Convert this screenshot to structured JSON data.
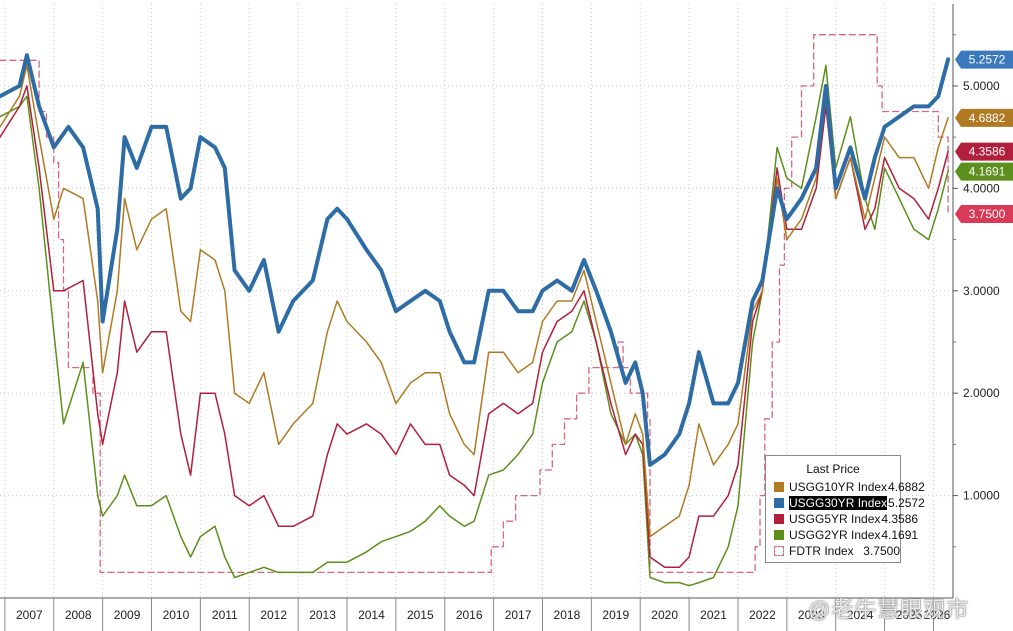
{
  "chart_data": {
    "type": "line",
    "title": "",
    "xlabel": "",
    "ylabel": "",
    "x_range": [
      2006.9,
      2026.4
    ],
    "ylim": [
      0.0,
      5.8
    ],
    "y_ticks": [
      "1.0000",
      "2.0000",
      "3.0000",
      "4.0000",
      "5.0000"
    ],
    "x_ticks": [
      "2007",
      "2008",
      "2009",
      "2010",
      "2011",
      "2012",
      "2013",
      "2014",
      "2015",
      "2016",
      "2017",
      "2018",
      "2019",
      "2020",
      "2021",
      "2022",
      "2023",
      "2024",
      "2025",
      "2026"
    ],
    "grid": true,
    "legend": {
      "title": "Last Price",
      "placement": "bottom-right",
      "entries": [
        {
          "name": "USGG10YR Index",
          "value": "4.6882",
          "color": "#b07a22",
          "highlight": false,
          "style": "solid"
        },
        {
          "name": "USGG30YR Index",
          "value": "5.2572",
          "color": "#2e6ca6",
          "highlight": true,
          "style": "solid"
        },
        {
          "name": "USGG5YR Index",
          "value": "4.3586",
          "color": "#b11f3c",
          "highlight": false,
          "style": "solid"
        },
        {
          "name": "USGG2YR Index",
          "value": "4.1691",
          "color": "#5c8f1b",
          "highlight": false,
          "style": "solid"
        },
        {
          "name": "FDTR Index",
          "value": "3.7500",
          "color": "#d9657e",
          "highlight": false,
          "style": "dashed"
        }
      ]
    },
    "last_value_badges": [
      {
        "label": "5.2572",
        "y": 5.2572,
        "color": "#3b79bf"
      },
      {
        "label": "4.6882",
        "y": 4.6882,
        "color": "#b07a22"
      },
      {
        "label": "4.3586",
        "y": 4.3586,
        "color": "#b11f3c"
      },
      {
        "label": "4.1691",
        "y": 4.1691,
        "color": "#5c8f1b"
      },
      {
        "label": "3.7500",
        "y": 3.75,
        "color": "#d83a57"
      }
    ],
    "series": [
      {
        "name": "USGG30YR Index",
        "color": "#2e6ca6",
        "width": 4,
        "x": [
          2006.9,
          2007.3,
          2007.45,
          2007.7,
          2008.0,
          2008.3,
          2008.6,
          2008.9,
          2009.0,
          2009.3,
          2009.45,
          2009.7,
          2010.0,
          2010.3,
          2010.6,
          2010.8,
          2011.0,
          2011.3,
          2011.5,
          2011.7,
          2012.0,
          2012.3,
          2012.6,
          2012.9,
          2013.3,
          2013.6,
          2013.8,
          2014.0,
          2014.4,
          2014.7,
          2015.0,
          2015.3,
          2015.6,
          2015.9,
          2016.1,
          2016.4,
          2016.6,
          2016.9,
          2017.2,
          2017.5,
          2017.8,
          2018.0,
          2018.3,
          2018.6,
          2018.85,
          2019.1,
          2019.4,
          2019.7,
          2019.9,
          2020.05,
          2020.2,
          2020.5,
          2020.8,
          2021.0,
          2021.2,
          2021.5,
          2021.8,
          2022.0,
          2022.3,
          2022.5,
          2022.8,
          2023.0,
          2023.3,
          2023.6,
          2023.8,
          2024.0,
          2024.3,
          2024.6,
          2024.8,
          2025.0,
          2025.3,
          2025.6,
          2025.9,
          2026.1,
          2026.3
        ],
        "y": [
          4.9,
          5.0,
          5.3,
          4.8,
          4.4,
          4.6,
          4.4,
          3.8,
          2.7,
          3.6,
          4.5,
          4.2,
          4.6,
          4.6,
          3.9,
          4.0,
          4.5,
          4.4,
          4.2,
          3.2,
          3.0,
          3.3,
          2.6,
          2.9,
          3.1,
          3.7,
          3.8,
          3.7,
          3.4,
          3.2,
          2.8,
          2.9,
          3.0,
          2.9,
          2.6,
          2.3,
          2.3,
          3.0,
          3.0,
          2.8,
          2.8,
          3.0,
          3.1,
          3.0,
          3.3,
          3.0,
          2.6,
          2.1,
          2.3,
          2.0,
          1.3,
          1.4,
          1.6,
          1.9,
          2.4,
          1.9,
          1.9,
          2.1,
          2.9,
          3.1,
          4.0,
          3.7,
          3.9,
          4.2,
          5.0,
          4.0,
          4.4,
          3.9,
          4.3,
          4.6,
          4.7,
          4.8,
          4.8,
          4.9,
          5.26
        ]
      },
      {
        "name": "USGG10YR Index",
        "color": "#b07a22",
        "width": 1.5,
        "x": [
          2006.9,
          2007.3,
          2007.45,
          2007.7,
          2008.0,
          2008.2,
          2008.6,
          2008.9,
          2009.0,
          2009.3,
          2009.45,
          2009.7,
          2010.0,
          2010.3,
          2010.6,
          2010.8,
          2011.0,
          2011.3,
          2011.5,
          2011.7,
          2012.0,
          2012.3,
          2012.6,
          2012.9,
          2013.3,
          2013.6,
          2013.8,
          2014.0,
          2014.4,
          2014.7,
          2015.0,
          2015.3,
          2015.6,
          2015.9,
          2016.1,
          2016.4,
          2016.6,
          2016.9,
          2017.2,
          2017.5,
          2017.8,
          2018.0,
          2018.3,
          2018.6,
          2018.85,
          2019.1,
          2019.4,
          2019.7,
          2019.9,
          2020.05,
          2020.2,
          2020.5,
          2020.8,
          2021.0,
          2021.2,
          2021.5,
          2021.8,
          2022.0,
          2022.3,
          2022.5,
          2022.8,
          2023.0,
          2023.3,
          2023.6,
          2023.8,
          2024.0,
          2024.3,
          2024.6,
          2024.8,
          2025.0,
          2025.3,
          2025.6,
          2025.9,
          2026.1,
          2026.3
        ],
        "y": [
          4.6,
          4.9,
          5.2,
          4.5,
          3.7,
          4.0,
          3.9,
          2.9,
          2.2,
          3.0,
          3.9,
          3.4,
          3.7,
          3.8,
          2.8,
          2.7,
          3.4,
          3.3,
          3.0,
          2.0,
          1.9,
          2.2,
          1.5,
          1.7,
          1.9,
          2.6,
          2.9,
          2.7,
          2.5,
          2.3,
          1.9,
          2.1,
          2.2,
          2.2,
          1.8,
          1.5,
          1.4,
          2.4,
          2.4,
          2.2,
          2.3,
          2.7,
          2.9,
          2.9,
          3.2,
          2.7,
          2.1,
          1.5,
          1.8,
          1.6,
          0.6,
          0.7,
          0.8,
          1.1,
          1.7,
          1.3,
          1.5,
          1.7,
          2.8,
          3.0,
          4.1,
          3.5,
          3.7,
          4.1,
          4.9,
          3.9,
          4.3,
          3.7,
          4.1,
          4.5,
          4.3,
          4.3,
          4.0,
          4.4,
          4.69
        ]
      },
      {
        "name": "USGG5YR Index",
        "color": "#b11f3c",
        "width": 1.5,
        "x": [
          2006.9,
          2007.3,
          2007.45,
          2007.7,
          2008.0,
          2008.2,
          2008.6,
          2008.9,
          2009.0,
          2009.3,
          2009.45,
          2009.7,
          2010.0,
          2010.3,
          2010.6,
          2010.8,
          2011.0,
          2011.3,
          2011.5,
          2011.7,
          2012.0,
          2012.3,
          2012.6,
          2012.9,
          2013.3,
          2013.6,
          2013.8,
          2014.0,
          2014.4,
          2014.7,
          2015.0,
          2015.3,
          2015.6,
          2015.9,
          2016.1,
          2016.4,
          2016.6,
          2016.9,
          2017.2,
          2017.5,
          2017.8,
          2018.0,
          2018.3,
          2018.6,
          2018.85,
          2019.1,
          2019.4,
          2019.7,
          2019.9,
          2020.05,
          2020.2,
          2020.5,
          2020.8,
          2021.0,
          2021.2,
          2021.5,
          2021.8,
          2022.0,
          2022.3,
          2022.5,
          2022.8,
          2023.0,
          2023.3,
          2023.6,
          2023.8,
          2024.0,
          2024.3,
          2024.6,
          2024.8,
          2025.0,
          2025.3,
          2025.6,
          2025.9,
          2026.1,
          2026.3
        ],
        "y": [
          4.5,
          4.8,
          5.0,
          4.2,
          3.0,
          3.0,
          3.1,
          1.8,
          1.5,
          2.2,
          2.9,
          2.4,
          2.6,
          2.6,
          1.6,
          1.2,
          2.0,
          2.0,
          1.6,
          1.0,
          0.9,
          1.0,
          0.7,
          0.7,
          0.8,
          1.4,
          1.7,
          1.6,
          1.7,
          1.6,
          1.4,
          1.7,
          1.5,
          1.5,
          1.2,
          1.1,
          1.0,
          1.8,
          1.9,
          1.8,
          1.9,
          2.4,
          2.7,
          2.8,
          3.0,
          2.5,
          1.9,
          1.4,
          1.6,
          1.5,
          0.4,
          0.3,
          0.3,
          0.4,
          0.8,
          0.8,
          1.0,
          1.3,
          2.7,
          3.0,
          4.2,
          3.6,
          3.6,
          4.0,
          4.8,
          3.9,
          4.3,
          3.6,
          3.8,
          4.3,
          4.0,
          3.9,
          3.7,
          4.0,
          4.36
        ]
      },
      {
        "name": "USGG2YR Index",
        "color": "#5c8f1b",
        "width": 1.5,
        "x": [
          2006.9,
          2007.3,
          2007.45,
          2007.7,
          2008.0,
          2008.2,
          2008.6,
          2008.9,
          2009.0,
          2009.3,
          2009.45,
          2009.7,
          2010.0,
          2010.3,
          2010.6,
          2010.8,
          2011.0,
          2011.3,
          2011.5,
          2011.7,
          2012.0,
          2012.3,
          2012.6,
          2012.9,
          2013.3,
          2013.6,
          2013.8,
          2014.0,
          2014.4,
          2014.7,
          2015.0,
          2015.3,
          2015.6,
          2015.9,
          2016.1,
          2016.4,
          2016.6,
          2016.9,
          2017.2,
          2017.5,
          2017.8,
          2018.0,
          2018.3,
          2018.6,
          2018.85,
          2019.1,
          2019.4,
          2019.7,
          2019.9,
          2020.05,
          2020.2,
          2020.5,
          2020.8,
          2021.0,
          2021.2,
          2021.5,
          2021.8,
          2022.0,
          2022.3,
          2022.5,
          2022.8,
          2023.0,
          2023.3,
          2023.6,
          2023.8,
          2024.0,
          2024.3,
          2024.6,
          2024.8,
          2025.0,
          2025.3,
          2025.6,
          2025.9,
          2026.1,
          2026.3
        ],
        "y": [
          4.7,
          4.8,
          4.9,
          4.0,
          2.6,
          1.7,
          2.3,
          1.0,
          0.8,
          1.0,
          1.2,
          0.9,
          0.9,
          1.0,
          0.6,
          0.4,
          0.6,
          0.7,
          0.4,
          0.2,
          0.25,
          0.3,
          0.25,
          0.25,
          0.25,
          0.35,
          0.35,
          0.35,
          0.45,
          0.55,
          0.6,
          0.65,
          0.75,
          0.9,
          0.8,
          0.7,
          0.75,
          1.2,
          1.25,
          1.4,
          1.6,
          2.1,
          2.5,
          2.6,
          2.9,
          2.5,
          1.8,
          1.5,
          1.6,
          1.4,
          0.2,
          0.15,
          0.15,
          0.12,
          0.15,
          0.2,
          0.5,
          0.9,
          2.5,
          3.0,
          4.4,
          4.1,
          4.0,
          4.7,
          5.2,
          4.2,
          4.7,
          3.9,
          3.6,
          4.2,
          3.9,
          3.6,
          3.5,
          3.8,
          4.17
        ]
      },
      {
        "name": "FDTR Index",
        "color": "#d9657e",
        "width": 1.3,
        "dashed": true,
        "step": true,
        "x": [
          2006.9,
          2007.6,
          2007.7,
          2007.85,
          2008.0,
          2008.1,
          2008.2,
          2008.3,
          2008.8,
          2008.95,
          2015.95,
          2016.95,
          2017.2,
          2017.45,
          2017.95,
          2018.2,
          2018.45,
          2018.7,
          2018.95,
          2019.55,
          2019.65,
          2019.8,
          2020.15,
          2020.2,
          2022.2,
          2022.35,
          2022.45,
          2022.55,
          2022.7,
          2022.85,
          2022.95,
          2023.1,
          2023.3,
          2023.55,
          2024.7,
          2024.85,
          2024.95,
          2026.1,
          2026.3
        ],
        "y": [
          5.25,
          5.25,
          4.75,
          4.5,
          4.25,
          3.5,
          3.0,
          2.25,
          2.0,
          0.25,
          0.25,
          0.5,
          0.75,
          1.0,
          1.25,
          1.5,
          1.75,
          2.0,
          2.25,
          2.5,
          2.25,
          2.0,
          1.75,
          0.25,
          0.25,
          0.5,
          1.0,
          1.75,
          2.5,
          3.25,
          4.0,
          4.5,
          5.0,
          5.5,
          5.5,
          5.0,
          4.75,
          4.5,
          3.75
        ]
      }
    ]
  },
  "watermark": "@老牛慧眼观市"
}
